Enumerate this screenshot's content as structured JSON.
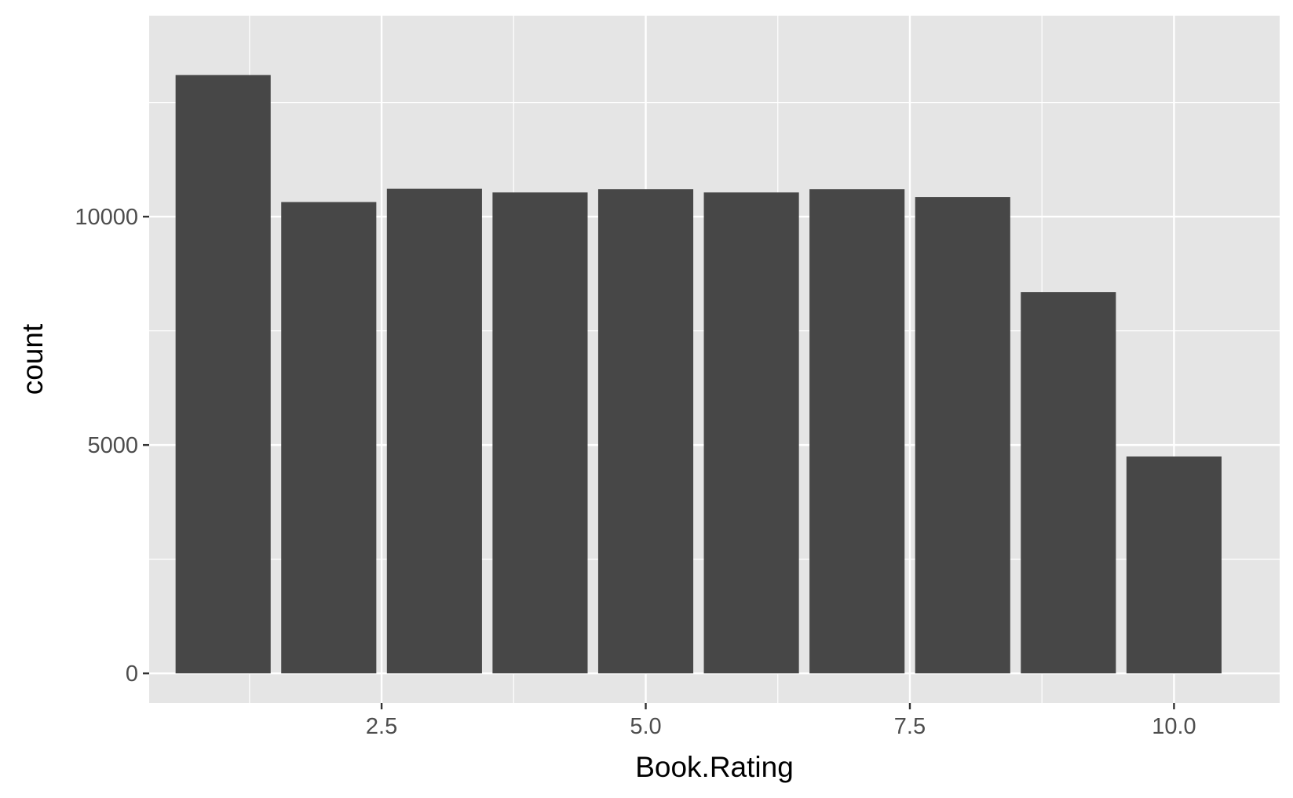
{
  "chart_data": {
    "type": "bar",
    "title": "",
    "xlabel": "Book.Rating",
    "ylabel": "count",
    "x": [
      1,
      2,
      3,
      4,
      5,
      6,
      7,
      8,
      9,
      10
    ],
    "values": [
      13100,
      10320,
      10610,
      10530,
      10600,
      10530,
      10600,
      10430,
      8350,
      4750
    ],
    "xlim": [
      0.3,
      11.0
    ],
    "ylim": [
      -650,
      14400
    ],
    "x_ticks": [
      2.5,
      5.0,
      7.5,
      10.0
    ],
    "x_tick_labels": [
      "2.5",
      "5.0",
      "7.5",
      "10.0"
    ],
    "x_minor_ticks": [
      1.25,
      3.75,
      6.25,
      8.75
    ],
    "y_ticks": [
      0,
      5000,
      10000
    ],
    "y_tick_labels": [
      "0",
      "5000",
      "10000"
    ],
    "y_minor_ticks": [
      2500,
      7500,
      12500
    ],
    "grid": true,
    "legend": "none",
    "colors": {
      "panel_background": "#e5e5e5",
      "grid_line": "#ffffff",
      "bar_fill": "#474747",
      "tick_mark": "#333333"
    }
  }
}
